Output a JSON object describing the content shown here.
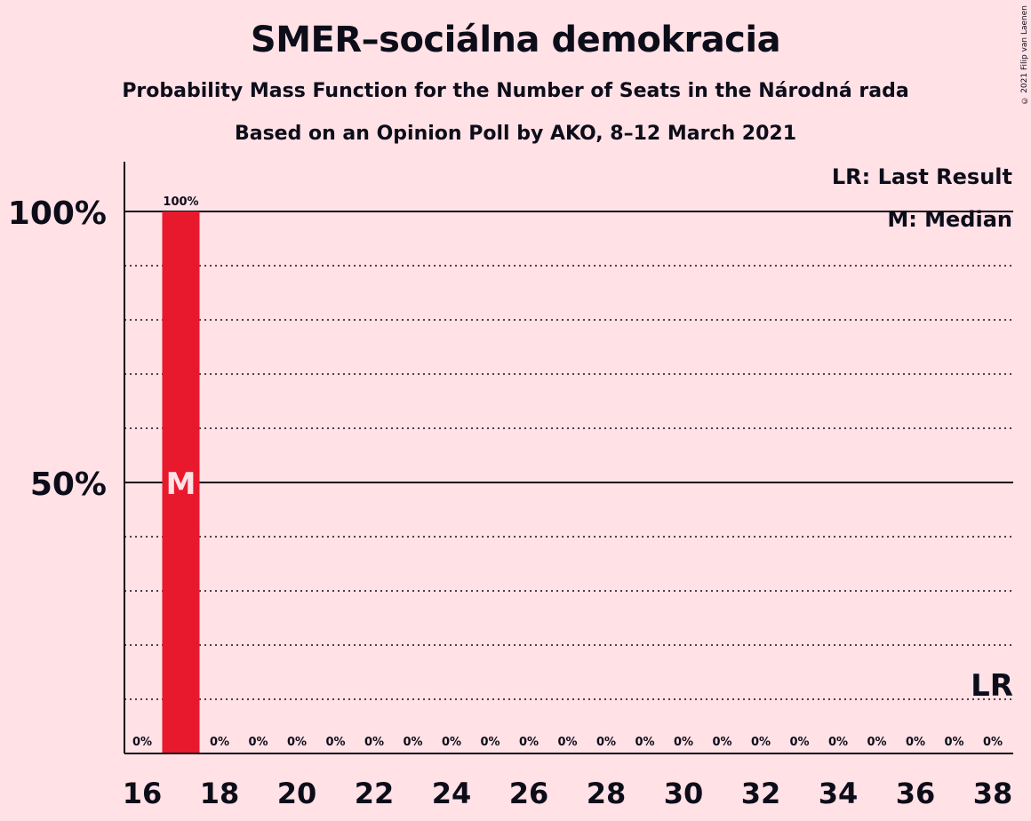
{
  "title": "SMER–sociálna demokracia",
  "subtitle1": "Probability Mass Function for the Number of Seats in the Národná rada",
  "subtitle2": "Based on an Opinion Poll by AKO, 8–12 March 2021",
  "copyright": "© 2021 Filip van Laenen",
  "legend": {
    "last_result": "LR: Last Result",
    "median": "M: Median"
  },
  "colors": {
    "background": "#FFE1E6",
    "bar": "#E8192C",
    "text": "#0D0D1A"
  },
  "chart_data": {
    "type": "bar",
    "x": [
      16,
      17,
      18,
      19,
      20,
      21,
      22,
      23,
      24,
      25,
      26,
      27,
      28,
      29,
      30,
      31,
      32,
      33,
      34,
      35,
      36,
      37,
      38
    ],
    "values": [
      0,
      100,
      0,
      0,
      0,
      0,
      0,
      0,
      0,
      0,
      0,
      0,
      0,
      0,
      0,
      0,
      0,
      0,
      0,
      0,
      0,
      0,
      0
    ],
    "value_labels": [
      "0%",
      "100%",
      "0%",
      "0%",
      "0%",
      "0%",
      "0%",
      "0%",
      "0%",
      "0%",
      "0%",
      "0%",
      "0%",
      "0%",
      "0%",
      "0%",
      "0%",
      "0%",
      "0%",
      "0%",
      "0%",
      "0%",
      "0%"
    ],
    "x_ticks": [
      "16",
      "18",
      "20",
      "22",
      "24",
      "26",
      "28",
      "30",
      "32",
      "34",
      "36",
      "38"
    ],
    "y_ticks": [
      {
        "value": 50,
        "label": "50%"
      },
      {
        "value": 100,
        "label": "100%"
      }
    ],
    "ylim": [
      0,
      110
    ],
    "median": 17,
    "median_label": "M",
    "last_result": 38,
    "last_result_label": "LR",
    "grid": "dotted every 10%, solid at 50% and 100%"
  }
}
